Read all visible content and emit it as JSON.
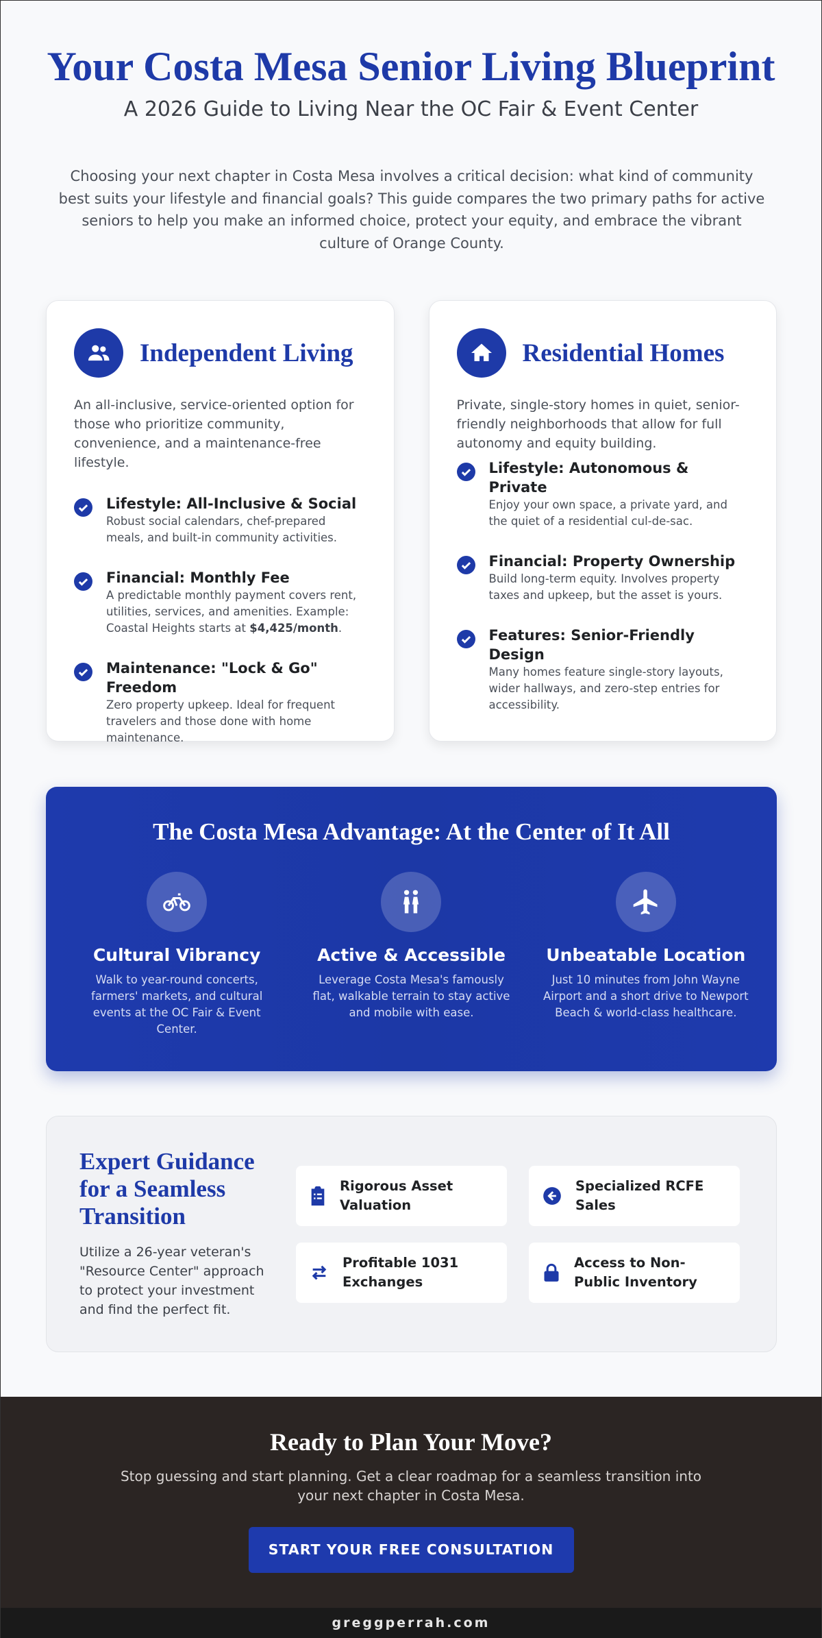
{
  "header": {
    "title": "Your Costa Mesa Senior Living Blueprint",
    "subtitle": "A 2026 Guide to Living Near the OC Fair & Event Center",
    "intro": "Choosing your next chapter in Costa Mesa involves a critical decision: what kind of community best suits your lifestyle and financial goals? This guide compares the two primary paths for active seniors to help you make an informed choice, protect your equity, and embrace the vibrant culture of Orange County."
  },
  "cards": [
    {
      "title": "Independent Living",
      "description": "An all-inclusive, service-oriented option for those who prioritize community, convenience, and a maintenance-free lifestyle.",
      "items": [
        {
          "title": "Lifestyle: All-Inclusive & Social",
          "text": "Robust social calendars, chef-prepared meals, and built-in community activities."
        },
        {
          "title": "Financial: Monthly Fee",
          "text_before": "A predictable monthly payment covers rent, utilities, services, and amenities. Example: Coastal Heights starts at",
          "highlight": "$4,425/month",
          "text_after": "."
        },
        {
          "title": "Maintenance: \"Lock & Go\" Freedom",
          "text": "Zero property upkeep. Ideal for frequent travelers and those done with home maintenance."
        }
      ]
    },
    {
      "title": "Residential Homes",
      "description": "Private, single-story homes in quiet, senior-friendly neighborhoods that allow for full autonomy and equity building.",
      "items": [
        {
          "title": "Lifestyle: Autonomous & Private",
          "text": "Enjoy your own space, a private yard, and the quiet of a residential cul-de-sac."
        },
        {
          "title": "Financial: Property Ownership",
          "text": "Build long-term equity. Involves property taxes and upkeep, but the asset is yours."
        },
        {
          "title": "Features: Senior-Friendly Design",
          "text": "Many homes feature single-story layouts, wider hallways, and zero-step entries for accessibility."
        }
      ]
    }
  ],
  "advantage": {
    "title": "The Costa Mesa Advantage: At the Center of It All",
    "items": [
      {
        "title": "Cultural Vibrancy",
        "text": "Walk to year-round concerts, farmers' markets, and cultural events at the OC Fair & Event Center."
      },
      {
        "title": "Active & Accessible",
        "text": "Leverage Costa Mesa's famously flat, walkable terrain to stay active and mobile with ease."
      },
      {
        "title": "Unbeatable Location",
        "text": "Just 10 minutes from John Wayne Airport and a short drive to Newport Beach & world-class healthcare."
      }
    ]
  },
  "expert": {
    "title": "Expert Guidance for a Seamless Transition",
    "text": "Utilize a 26-year veteran's \"Resource Center\" approach to protect your investment and find the perfect fit.",
    "features": [
      "Rigorous Asset Valuation",
      "Specialized RCFE Sales",
      "Profitable 1031 Exchanges",
      "Access to Non-Public Inventory"
    ]
  },
  "cta": {
    "title": "Ready to Plan Your Move?",
    "text": "Stop guessing and start planning. Get a clear roadmap for a seamless transition into your next chapter in Costa Mesa.",
    "button": "START YOUR FREE CONSULTATION"
  },
  "footer": {
    "text": "greggperrah.com"
  }
}
